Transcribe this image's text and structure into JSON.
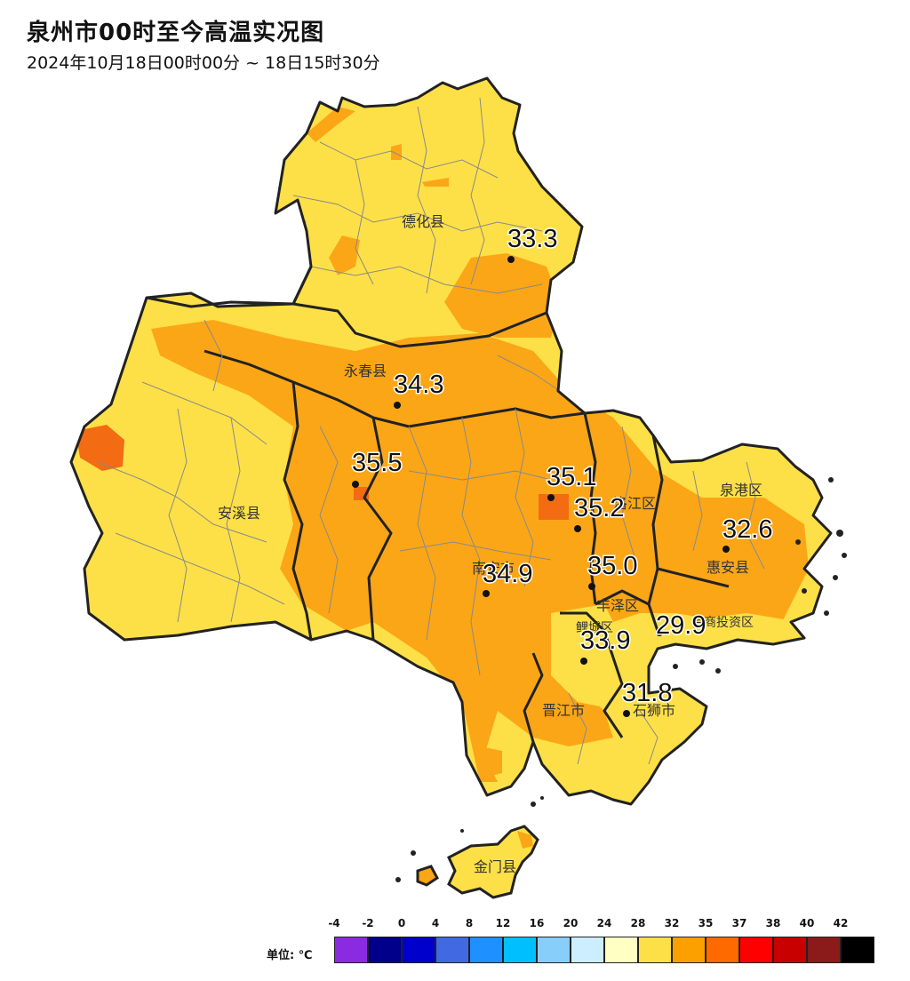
{
  "title": "泉州市00时至今高温实况图",
  "subtitle": "2024年10月18日00时00分 ~ 18日15时30分",
  "regions": [
    {
      "name": "德化县"
    },
    {
      "name": "永春县"
    },
    {
      "name": "安溪县"
    },
    {
      "name": "南安市"
    },
    {
      "name": "洛江区"
    },
    {
      "name": "泉港区"
    },
    {
      "name": "惠安县"
    },
    {
      "name": "丰泽区"
    },
    {
      "name": "鲤城区"
    },
    {
      "name": "晋江市"
    },
    {
      "name": "石狮市"
    },
    {
      "name": "台商投资区"
    },
    {
      "name": "金门县"
    }
  ],
  "stations": [
    {
      "value": "33.3"
    },
    {
      "value": "34.3"
    },
    {
      "value": "35.5"
    },
    {
      "value": "35.1"
    },
    {
      "value": "35.2"
    },
    {
      "value": "32.6"
    },
    {
      "value": "34.9"
    },
    {
      "value": "35.0"
    },
    {
      "value": "29.9"
    },
    {
      "value": "33.9"
    },
    {
      "value": "31.8"
    }
  ],
  "legend": {
    "unit": "单位: ℃",
    "ticks": [
      "-4",
      "-2",
      "0",
      "4",
      "8",
      "12",
      "16",
      "20",
      "24",
      "28",
      "32",
      "35",
      "37",
      "38",
      "40",
      "42"
    ],
    "colors": [
      "#8a2be2",
      "#00008b",
      "#0000cd",
      "#4169e1",
      "#1e90ff",
      "#00bfff",
      "#87cefa",
      "#cdeeff",
      "#ffffc4",
      "#fde047",
      "#fca000",
      "#ff6a00",
      "#ff0000",
      "#c80000",
      "#8b1a1a",
      "#000000"
    ]
  },
  "colors": {
    "light_yellow": "#fde047",
    "orange": "#fba617",
    "dark_orange": "#f36b12",
    "border": "#222222"
  }
}
